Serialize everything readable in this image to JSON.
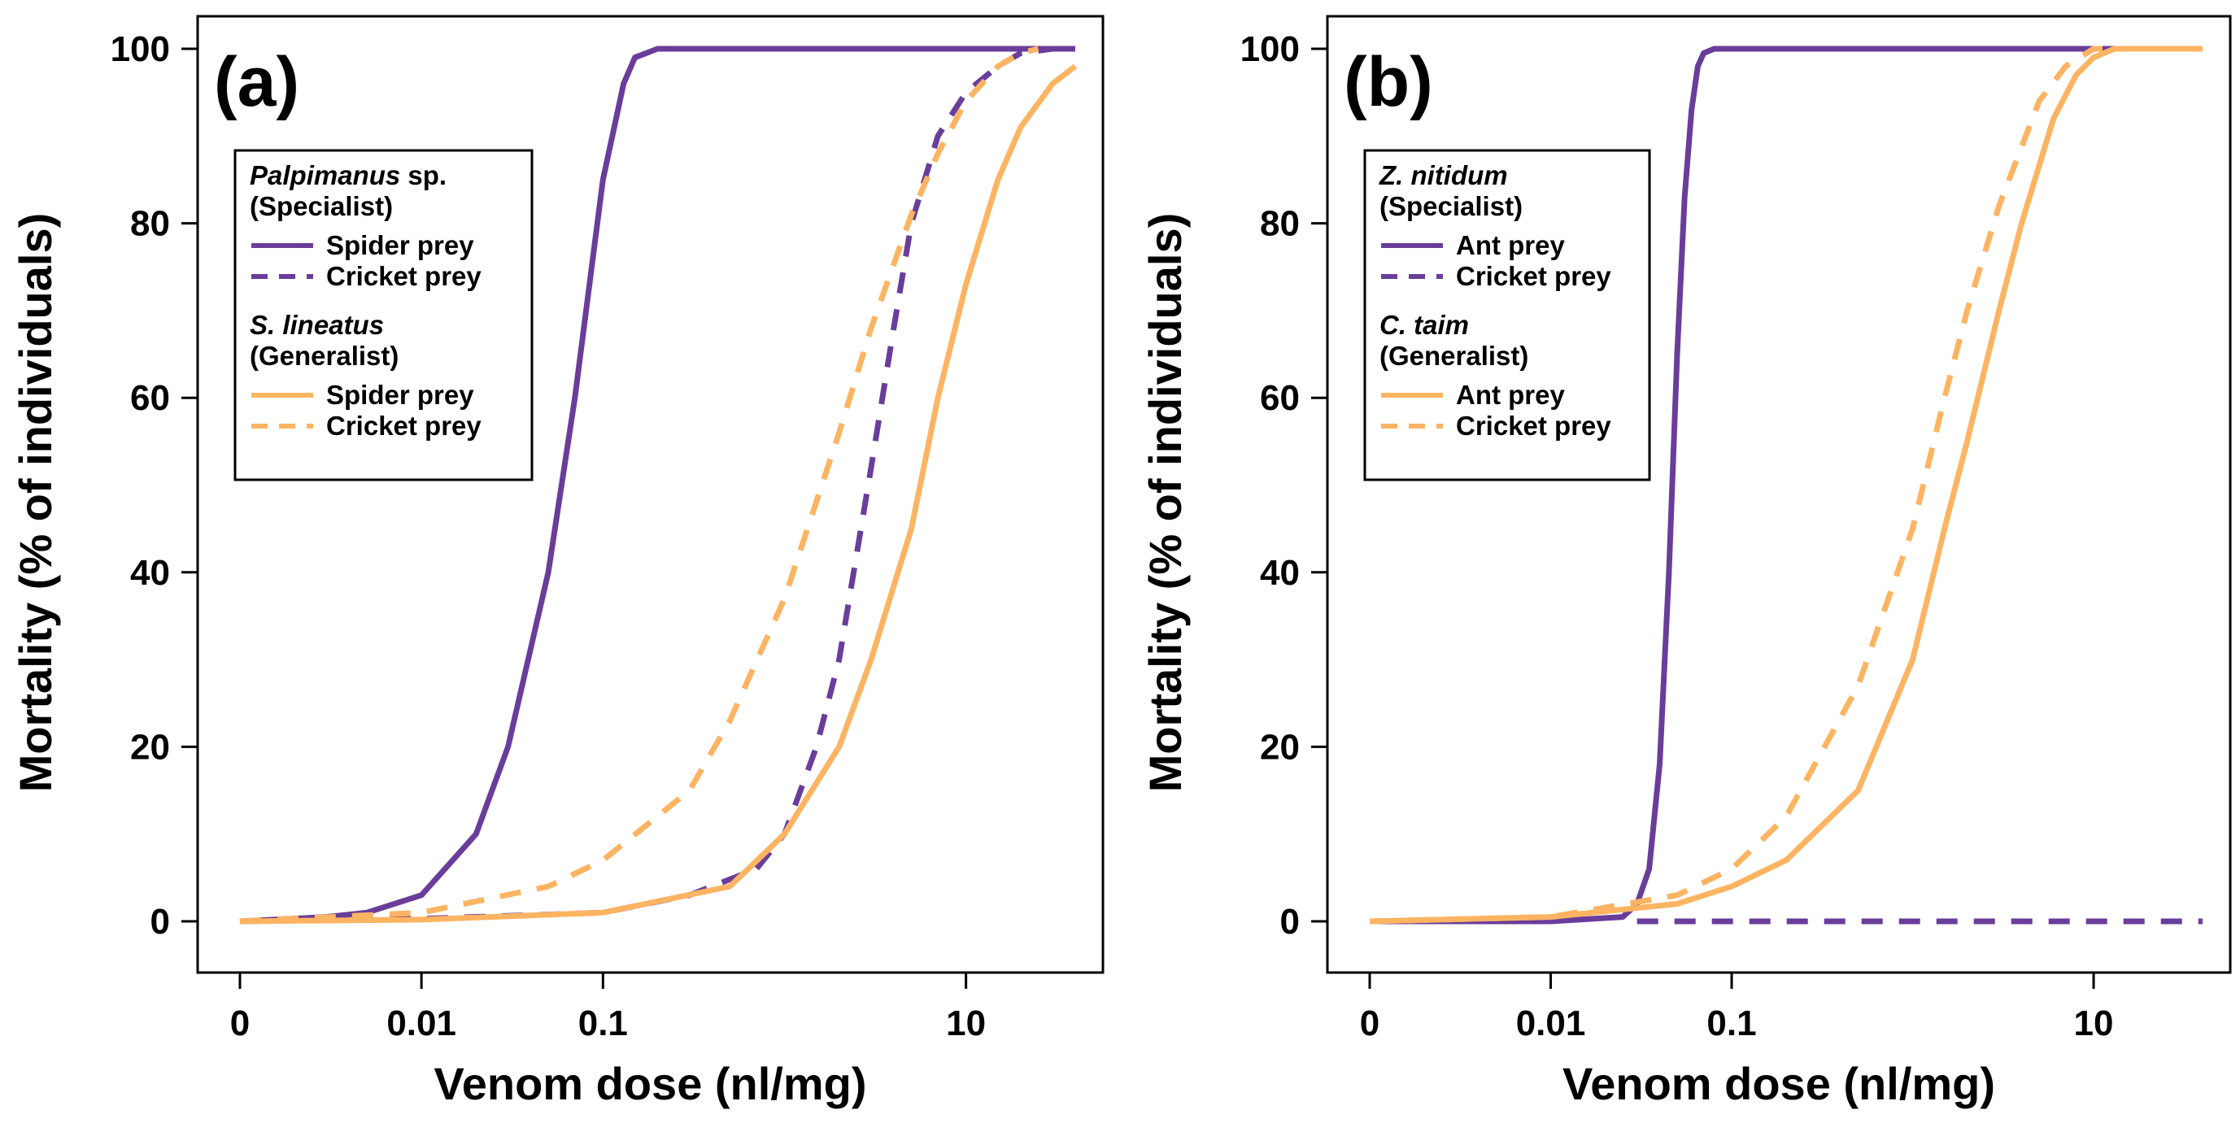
{
  "chart_data": [
    {
      "type": "line",
      "panel_label": "(a)",
      "xlabel": "Venom dose (nl/mg)",
      "ylabel": "Mortality (% of individuals)",
      "x_scale": "log",
      "x_ticks": [
        0.001,
        0.01,
        0.1,
        10
      ],
      "x_tick_labels": [
        "0",
        "0.01",
        "0.1",
        "10"
      ],
      "xlim": [
        0.001,
        60
      ],
      "ylim": [
        0,
        100
      ],
      "y_ticks": [
        0,
        20,
        40,
        60,
        80,
        100
      ],
      "y_tick_labels": [
        "0",
        "20",
        "40",
        "60",
        "80",
        "100"
      ],
      "legend": {
        "position": "top-left",
        "groups": [
          {
            "species": "Palpimanus",
            "species_suffix": " sp.",
            "role": "(Specialist)",
            "color": "#6a3d9a",
            "entries": [
              {
                "label": "Spider prey",
                "style": "solid"
              },
              {
                "label": "Cricket prey",
                "style": "dashed"
              }
            ]
          },
          {
            "species": "S. lineatus",
            "species_suffix": "",
            "role": "(Generalist)",
            "color": "#fdb462",
            "entries": [
              {
                "label": "Spider prey",
                "style": "solid"
              },
              {
                "label": "Cricket prey",
                "style": "dashed"
              }
            ]
          }
        ]
      },
      "series": [
        {
          "name": "Palpimanus sp. - Spider prey",
          "color": "#6a3d9a",
          "style": "solid",
          "x": [
            0.001,
            0.003,
            0.005,
            0.01,
            0.02,
            0.03,
            0.05,
            0.07,
            0.1,
            0.13,
            0.15,
            0.2,
            1,
            10,
            40
          ],
          "values": [
            0,
            0.5,
            1,
            3,
            10,
            20,
            40,
            60,
            85,
            96,
            99,
            100,
            100,
            100,
            100
          ]
        },
        {
          "name": "Palpimanus sp. - Cricket prey",
          "color": "#6a3d9a",
          "style": "dashed",
          "x": [
            0.001,
            0.01,
            0.1,
            0.3,
            0.7,
            1,
            1.5,
            2,
            3,
            4,
            5,
            7,
            10,
            15,
            20,
            30
          ],
          "values": [
            0,
            0.3,
            1,
            3,
            6,
            10,
            20,
            30,
            52,
            68,
            80,
            90,
            95,
            98,
            99.5,
            100
          ]
        },
        {
          "name": "S. lineatus - Spider prey",
          "color": "#fdb462",
          "style": "solid",
          "x": [
            0.001,
            0.01,
            0.1,
            0.5,
            1,
            2,
            3,
            5,
            7,
            10,
            15,
            20,
            30,
            40
          ],
          "values": [
            0,
            0.2,
            1,
            4,
            10,
            20,
            30,
            45,
            60,
            73,
            85,
            91,
            96,
            98
          ]
        },
        {
          "name": "S. lineatus - Cricket prey",
          "color": "#fdb462",
          "style": "dashed",
          "x": [
            0.001,
            0.01,
            0.05,
            0.1,
            0.3,
            0.5,
            1,
            2,
            3,
            5,
            7,
            10,
            15,
            20,
            25
          ],
          "values": [
            0,
            1,
            4,
            7,
            15,
            23,
            37,
            56,
            68,
            81,
            88,
            94,
            98,
            99.5,
            100
          ]
        }
      ]
    },
    {
      "type": "line",
      "panel_label": "(b)",
      "xlabel": "Venom dose (nl/mg)",
      "ylabel": "Mortality (% of individuals)",
      "x_scale": "log",
      "x_ticks": [
        0.001,
        0.01,
        0.1,
        10
      ],
      "x_tick_labels": [
        "0",
        "0.01",
        "0.1",
        "10"
      ],
      "xlim": [
        0.001,
        60
      ],
      "ylim": [
        0,
        100
      ],
      "y_ticks": [
        0,
        20,
        40,
        60,
        80,
        100
      ],
      "y_tick_labels": [
        "0",
        "20",
        "40",
        "60",
        "80",
        "100"
      ],
      "legend": {
        "position": "top-left",
        "groups": [
          {
            "species": "Z. nitidum",
            "species_suffix": "",
            "role": "(Specialist)",
            "color": "#6a3d9a",
            "entries": [
              {
                "label": "Ant prey",
                "style": "solid"
              },
              {
                "label": "Cricket prey",
                "style": "dashed"
              }
            ]
          },
          {
            "species": "C. taim",
            "species_suffix": "",
            "role": "(Generalist)",
            "color": "#fdb462",
            "entries": [
              {
                "label": "Ant prey",
                "style": "solid"
              },
              {
                "label": "Cricket prey",
                "style": "dashed"
              }
            ]
          }
        ]
      },
      "series": [
        {
          "name": "Z. nitidum - Ant prey",
          "color": "#6a3d9a",
          "style": "solid",
          "x": [
            0.001,
            0.01,
            0.025,
            0.03,
            0.035,
            0.04,
            0.045,
            0.05,
            0.055,
            0.06,
            0.065,
            0.07,
            0.08,
            1,
            40
          ],
          "values": [
            0,
            0,
            0.5,
            2,
            6,
            18,
            40,
            65,
            83,
            93,
            98,
            99.5,
            100,
            100,
            100
          ]
        },
        {
          "name": "Z. nitidum - Cricket prey",
          "color": "#6a3d9a",
          "style": "dashed",
          "x": [
            0.03,
            40
          ],
          "values": [
            0,
            0
          ]
        },
        {
          "name": "C. taim - Ant prey",
          "color": "#fdb462",
          "style": "solid",
          "x": [
            0.001,
            0.01,
            0.05,
            0.1,
            0.2,
            0.5,
            1,
            1.5,
            2,
            3,
            4,
            6,
            8,
            10,
            13,
            20,
            40
          ],
          "values": [
            0,
            0.5,
            2,
            4,
            7,
            15,
            30,
            45,
            55,
            70,
            80,
            92,
            97,
            99,
            100,
            100,
            100
          ]
        },
        {
          "name": "C. taim - Cricket prey",
          "color": "#fdb462",
          "style": "dashed",
          "x": [
            0.001,
            0.01,
            0.05,
            0.1,
            0.2,
            0.5,
            1,
            1.5,
            2,
            3,
            5,
            7,
            10,
            20
          ],
          "values": [
            0,
            0.5,
            3,
            6,
            12,
            27,
            45,
            60,
            70,
            82,
            94,
            98,
            100,
            100
          ]
        }
      ]
    }
  ]
}
